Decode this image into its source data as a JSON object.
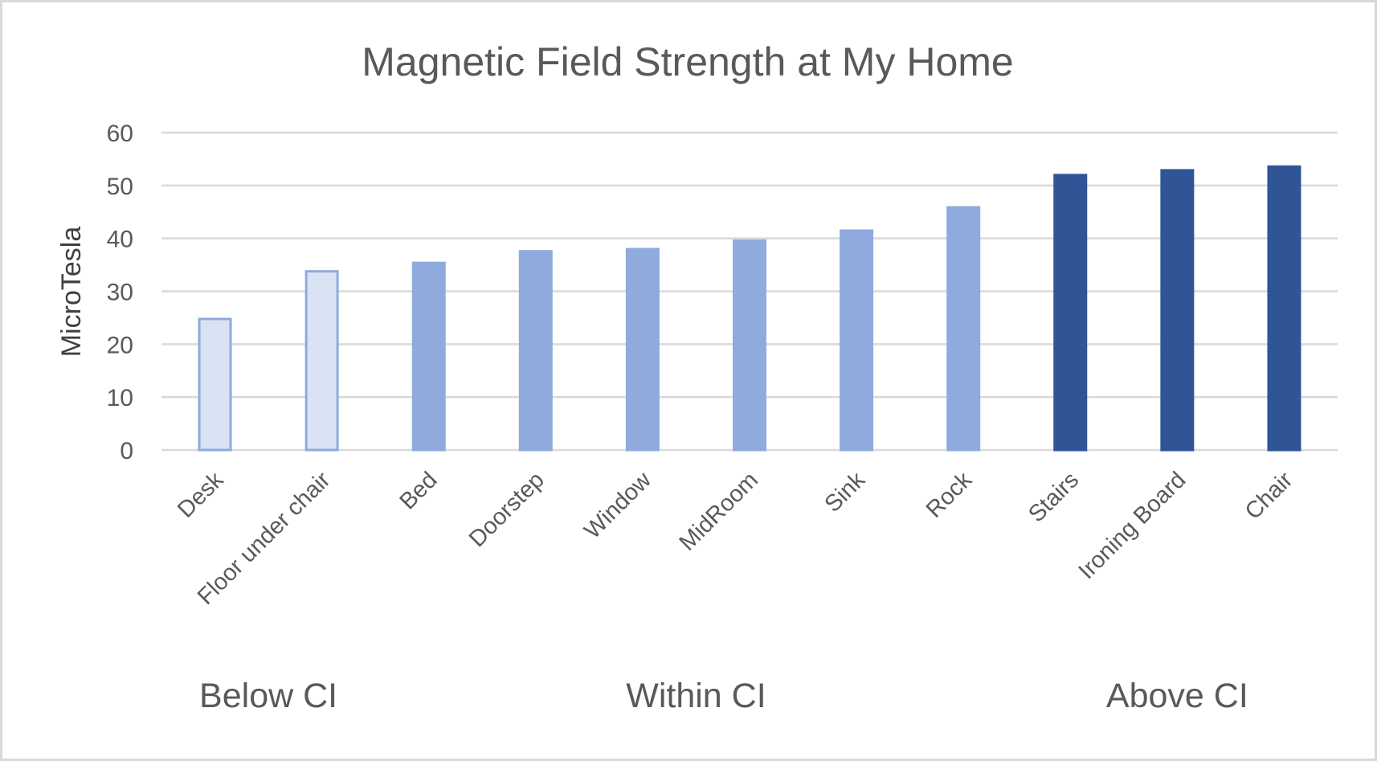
{
  "chart_data": {
    "type": "bar",
    "title": "Magnetic Field Strength at My Home",
    "xlabel": "",
    "ylabel": "MicroTesla",
    "ylim": [
      0,
      60
    ],
    "yticks": [
      0,
      10,
      20,
      30,
      40,
      50,
      60
    ],
    "grid": true,
    "legend": "none",
    "categories": [
      "Desk",
      "Floor under chair",
      "Bed",
      "Doorstep",
      "Window",
      "MidRoom",
      "Sink",
      "Rock",
      "Stairs",
      "Ironing Board",
      "Chair"
    ],
    "values": [
      25,
      34,
      35.6,
      37.8,
      38.2,
      39.8,
      41.7,
      46.1,
      52.2,
      53.1,
      53.8
    ],
    "groups": [
      {
        "label": "Below CI",
        "members": [
          "Desk",
          "Floor under chair"
        ],
        "fill": "#dae3f3",
        "stroke": "#8faadc"
      },
      {
        "label": "Within CI",
        "members": [
          "Bed",
          "Doorstep",
          "Window",
          "MidRoom",
          "Sink",
          "Rock"
        ],
        "fill": "#8faadc",
        "stroke": "#8faadc"
      },
      {
        "label": "Above CI",
        "members": [
          "Stairs",
          "Ironing Board",
          "Chair"
        ],
        "fill": "#2f5597",
        "stroke": "#2f5597"
      }
    ]
  }
}
